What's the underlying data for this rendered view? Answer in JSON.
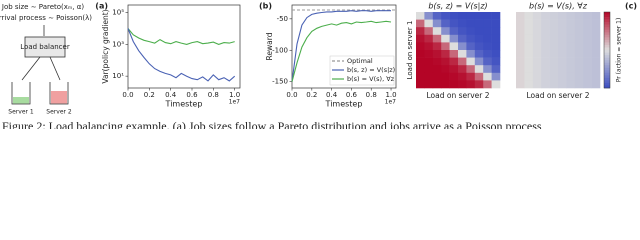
{
  "diagram": {
    "job_size": "Job size ∼ Pareto(xₘ, α)",
    "arrival": "Arrival process ∼ Poisson(λ)",
    "balancer": "Load balancer",
    "servers": [
      "Server 1",
      "Server 2"
    ]
  },
  "chart_data": [
    {
      "type": "line",
      "panel": "(a)",
      "ylabel": "Var(policy gradient)",
      "xlabel": "Timestep",
      "x_offset_label": "1e7",
      "log_y": true,
      "xlim": [
        0,
        1.05
      ],
      "ylim": [
        1.8,
        300000
      ],
      "xticks": [
        {
          "value": 0,
          "label": "0.0"
        },
        0.2,
        0.4,
        0.6,
        0.8,
        {
          "value": 1,
          "label": "1.0"
        }
      ],
      "yticks": [
        {
          "value": 10,
          "label": "10¹"
        },
        {
          "value": 1000,
          "label": "10³"
        },
        {
          "value": 100000,
          "label": "10⁵"
        }
      ],
      "x": [
        0,
        0.05,
        0.1,
        0.15,
        0.2,
        0.25,
        0.3,
        0.35,
        0.4,
        0.45,
        0.5,
        0.55,
        0.6,
        0.65,
        0.7,
        0.75,
        0.8,
        0.85,
        0.9,
        0.95,
        1
      ],
      "series": [
        {
          "color": "#4cae4c",
          "values": [
            10000,
            4000,
            2500,
            1800,
            1500,
            1200,
            2000,
            1300,
            1100,
            1500,
            1200,
            1000,
            1300,
            1500,
            1100,
            1200,
            1400,
            1000,
            1300,
            1200,
            1500
          ]
        },
        {
          "color": "#4a62b4",
          "values": [
            10000,
            1500,
            400,
            150,
            60,
            30,
            20,
            15,
            12,
            8,
            15,
            10,
            7,
            6,
            9,
            5,
            12,
            6,
            8,
            5,
            10
          ]
        }
      ]
    },
    {
      "type": "line",
      "panel": "(b)",
      "ylabel": "Reward",
      "xlabel": "Timestep",
      "x_offset_label": "1e7",
      "xlim": [
        0,
        1.05
      ],
      "ylim": [
        -160,
        -28
      ],
      "xticks": [
        {
          "value": 0,
          "label": "0.0"
        },
        0.2,
        0.4,
        0.6,
        0.8,
        {
          "value": 1,
          "label": "1.0"
        }
      ],
      "yticks": [
        -150,
        -100,
        -50
      ],
      "legend": "lower right",
      "reference_line": {
        "name": "Optimal",
        "value": -36,
        "color": "#999999"
      },
      "x": [
        0,
        0.05,
        0.1,
        0.15,
        0.2,
        0.25,
        0.3,
        0.35,
        0.4,
        0.45,
        0.5,
        0.55,
        0.6,
        0.65,
        0.7,
        0.75,
        0.8,
        0.85,
        0.9,
        0.95,
        1
      ],
      "series": [
        {
          "name": "b(s, z) = V(s|z)",
          "color": "#4a62b4",
          "values": [
            -150,
            -90,
            -60,
            -48,
            -43,
            -41,
            -40,
            -39,
            -39,
            -38,
            -38,
            -38,
            -37,
            -38,
            -37,
            -37,
            -38,
            -37,
            -37,
            -37,
            -37
          ]
        },
        {
          "name": "b(s) = V(s), ∀z",
          "color": "#4cae4c",
          "values": [
            -150,
            -120,
            -95,
            -80,
            -70,
            -65,
            -62,
            -60,
            -58,
            -60,
            -57,
            -56,
            -58,
            -55,
            -56,
            -55,
            -54,
            -56,
            -55,
            -54,
            -55
          ]
        }
      ]
    },
    {
      "type": "heatmap",
      "title": "b(s, z) = V(s|z)",
      "xlabel": "Load on server 2",
      "ylabel": "Load on server 1",
      "clim": [
        0,
        1
      ],
      "colormap": [
        "#3b4cc0",
        "#dddddd",
        "#b40426"
      ],
      "values": [
        [
          0.5,
          0.23,
          0.08,
          0.03,
          0.01,
          0,
          0,
          0,
          0,
          0
        ],
        [
          0.77,
          0.5,
          0.23,
          0.08,
          0.03,
          0.01,
          0,
          0,
          0,
          0
        ],
        [
          0.92,
          0.77,
          0.5,
          0.23,
          0.08,
          0.03,
          0.01,
          0,
          0,
          0
        ],
        [
          0.97,
          0.92,
          0.77,
          0.5,
          0.23,
          0.08,
          0.03,
          0.01,
          0,
          0
        ],
        [
          0.99,
          0.97,
          0.92,
          0.77,
          0.5,
          0.23,
          0.08,
          0.03,
          0.01,
          0
        ],
        [
          1,
          0.99,
          0.97,
          0.92,
          0.77,
          0.5,
          0.23,
          0.08,
          0.03,
          0.01
        ],
        [
          1,
          1,
          0.99,
          0.97,
          0.92,
          0.77,
          0.5,
          0.23,
          0.08,
          0.03
        ],
        [
          1,
          1,
          1,
          0.99,
          0.97,
          0.92,
          0.77,
          0.5,
          0.23,
          0.08
        ],
        [
          1,
          1,
          1,
          1,
          0.99,
          0.97,
          0.92,
          0.77,
          0.5,
          0.23
        ],
        [
          1,
          1,
          1,
          1,
          1,
          0.99,
          0.97,
          0.92,
          0.77,
          0.5
        ]
      ]
    },
    {
      "type": "heatmap",
      "title": "b(s) = V(s), ∀z",
      "xlabel": "Load on server 2",
      "panel": "(c)",
      "clim": [
        0,
        1
      ],
      "colormap": [
        "#3b4cc0",
        "#dddddd",
        "#b40426"
      ],
      "colorbar_label": "Pr (action = server 1)",
      "values": [
        [
          0.52,
          0.5,
          0.48,
          0.46,
          0.45,
          0.44,
          0.43,
          0.42,
          0.41,
          0.4
        ],
        [
          0.52,
          0.5,
          0.48,
          0.46,
          0.45,
          0.44,
          0.43,
          0.42,
          0.41,
          0.4
        ],
        [
          0.52,
          0.5,
          0.48,
          0.46,
          0.45,
          0.44,
          0.43,
          0.42,
          0.41,
          0.4
        ],
        [
          0.52,
          0.5,
          0.48,
          0.46,
          0.45,
          0.44,
          0.43,
          0.42,
          0.41,
          0.4
        ],
        [
          0.52,
          0.5,
          0.48,
          0.46,
          0.45,
          0.44,
          0.43,
          0.42,
          0.41,
          0.4
        ],
        [
          0.52,
          0.5,
          0.48,
          0.46,
          0.45,
          0.44,
          0.43,
          0.42,
          0.41,
          0.4
        ],
        [
          0.52,
          0.5,
          0.48,
          0.46,
          0.45,
          0.44,
          0.43,
          0.42,
          0.41,
          0.4
        ],
        [
          0.52,
          0.5,
          0.48,
          0.46,
          0.45,
          0.44,
          0.43,
          0.42,
          0.41,
          0.4
        ],
        [
          0.52,
          0.5,
          0.48,
          0.46,
          0.45,
          0.44,
          0.43,
          0.42,
          0.41,
          0.4
        ],
        [
          0.52,
          0.5,
          0.48,
          0.46,
          0.45,
          0.44,
          0.43,
          0.42,
          0.41,
          0.4
        ]
      ]
    }
  ],
  "caption": "Figure 2: Load balancing example. (a) Job sizes follow a Pareto distribution and jobs arrive as a Poisson process"
}
